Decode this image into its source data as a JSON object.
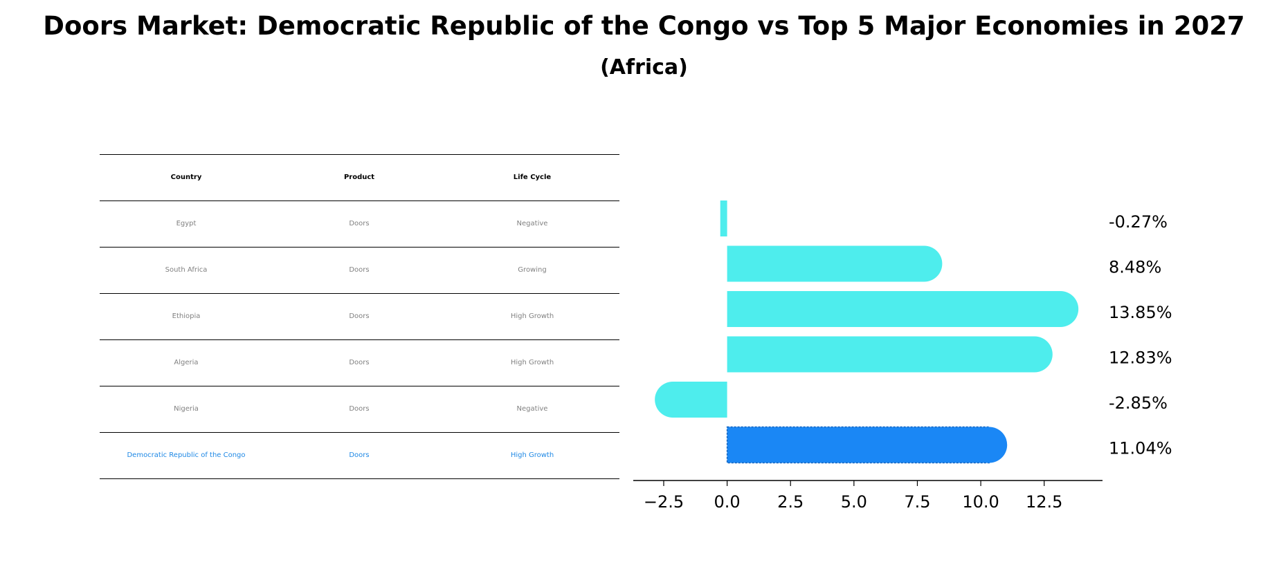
{
  "title": "Doors Market: Democratic Republic of the Congo vs Top 5 Major Economies in 2027",
  "subtitle": "(Africa)",
  "table": {
    "headers": [
      "Country",
      "Product",
      "Life Cycle"
    ],
    "rows": [
      [
        "Egypt",
        "Doors",
        "Negative"
      ],
      [
        "South Africa",
        "Doors",
        "Growing"
      ],
      [
        "Ethiopia",
        "Doors",
        "High Growth"
      ],
      [
        "Algeria",
        "Doors",
        "High Growth"
      ],
      [
        "Nigeria",
        "Doors",
        "Negative"
      ],
      [
        "Democratic Republic of the Congo",
        "Doors",
        "High Growth"
      ]
    ],
    "highlight_row": 5
  },
  "colors": {
    "bar": "#4eeded",
    "highlight": "#1a87f5",
    "table_text": "#808080",
    "highlight_text": "#1e88e5"
  },
  "chart_data": {
    "type": "bar",
    "orientation": "horizontal",
    "categories": [
      "Egypt",
      "South Africa",
      "Ethiopia",
      "Algeria",
      "Nigeria",
      "Democratic Republic of the Congo"
    ],
    "values": [
      -0.27,
      8.48,
      13.85,
      12.83,
      -2.85,
      11.04
    ],
    "value_labels": [
      "-0.27%",
      "8.48%",
      "13.85%",
      "12.83%",
      "-2.85%",
      "11.04%"
    ],
    "highlight_index": 5,
    "xlim": [
      -3.7,
      14.8
    ],
    "xticks": [
      -2.5,
      0.0,
      2.5,
      5.0,
      7.5,
      10.0,
      12.5
    ],
    "xtick_labels": [
      "−2.5",
      "0.0",
      "2.5",
      "5.0",
      "7.5",
      "10.0",
      "12.5"
    ],
    "xlabel": "",
    "ylabel": ""
  }
}
